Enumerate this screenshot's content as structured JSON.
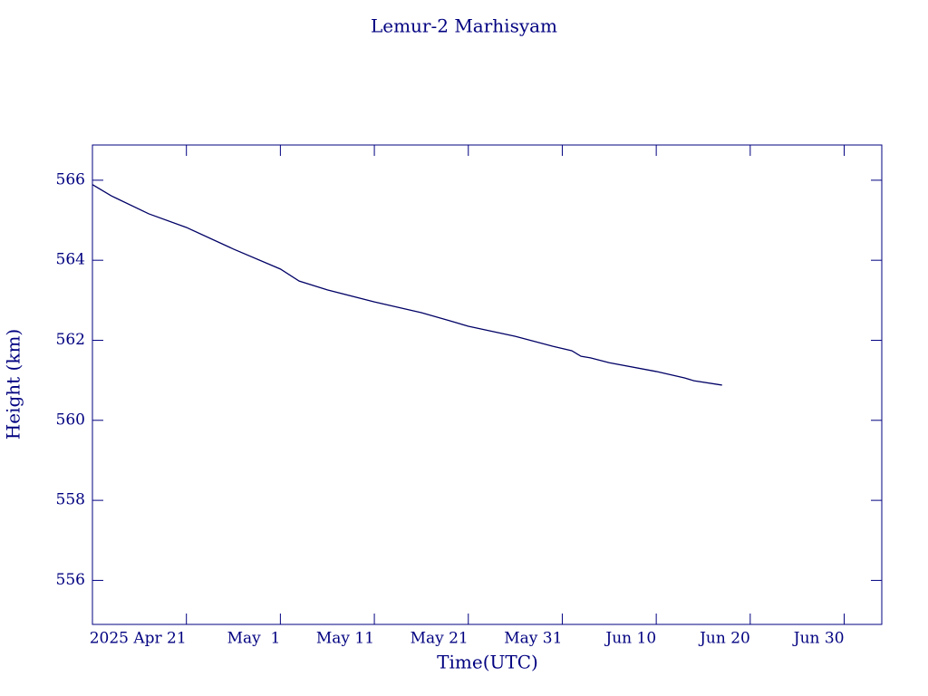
{
  "chart_data": {
    "type": "line",
    "title": "Lemur-2 Marhisyam",
    "xlabel": "Time(UTC)",
    "ylabel": "Height (km)",
    "x": [
      "2025-04-11",
      "2025-04-13",
      "2025-04-17",
      "2025-04-21",
      "2025-04-26",
      "2025-05-01",
      "2025-05-03",
      "2025-05-06",
      "2025-05-11",
      "2025-05-16",
      "2025-05-19",
      "2025-05-21",
      "2025-05-26",
      "2025-05-30",
      "2025-06-01",
      "2025-06-02",
      "2025-06-03",
      "2025-06-05",
      "2025-06-10",
      "2025-06-13",
      "2025-06-14",
      "2025-06-17"
    ],
    "series": [
      {
        "color": "#000066",
        "values": [
          565.89,
          565.61,
          565.16,
          564.82,
          564.28,
          563.78,
          563.48,
          563.26,
          562.96,
          562.69,
          562.49,
          562.35,
          562.1,
          561.85,
          561.74,
          561.6,
          561.56,
          561.44,
          561.22,
          561.06,
          560.99,
          560.88
        ]
      }
    ],
    "xlim": [
      "2025-04-11",
      "2025-07-04"
    ],
    "xticks": [
      {
        "value": "2025-04-21",
        "label": "2025 Apr 21"
      },
      {
        "value": "2025-05-01",
        "label": "May  1"
      },
      {
        "value": "2025-05-11",
        "label": "May 11"
      },
      {
        "value": "2025-05-21",
        "label": "May 21"
      },
      {
        "value": "2025-05-31",
        "label": "May 31"
      },
      {
        "value": "2025-06-10",
        "label": "Jun 10"
      },
      {
        "value": "2025-06-20",
        "label": "Jun 20"
      },
      {
        "value": "2025-06-30",
        "label": "Jun 30"
      }
    ],
    "ylim": [
      554.9,
      566.88
    ],
    "yticks": [
      556,
      558,
      560,
      562,
      564,
      566
    ],
    "axis_color": "#000080"
  }
}
